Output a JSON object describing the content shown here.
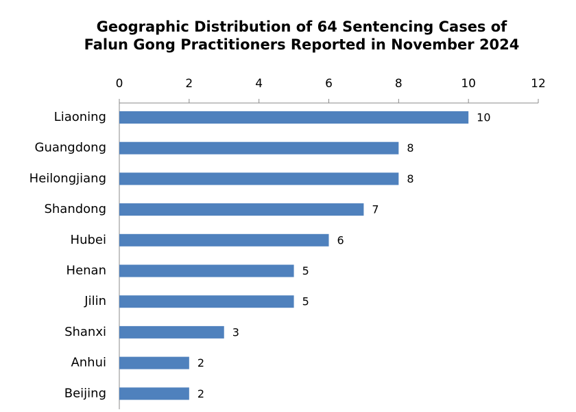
{
  "chart_data": {
    "type": "bar",
    "orientation": "horizontal",
    "title": [
      "Geographic Distribution of 64 Sentencing Cases of",
      "Falun Gong Practitioners Reported in November 2024"
    ],
    "categories": [
      "Liaoning",
      "Guangdong",
      "Heilongjiang",
      "Shandong",
      "Hubei",
      "Henan",
      "Jilin",
      "Shanxi",
      "Anhui",
      "Beijing"
    ],
    "values": [
      10,
      8,
      8,
      7,
      6,
      5,
      5,
      3,
      2,
      2
    ],
    "color": "#4f81bd",
    "xlim": [
      0,
      12
    ],
    "xticks": [
      0,
      2,
      4,
      6,
      8,
      10,
      12
    ],
    "grid": false
  }
}
